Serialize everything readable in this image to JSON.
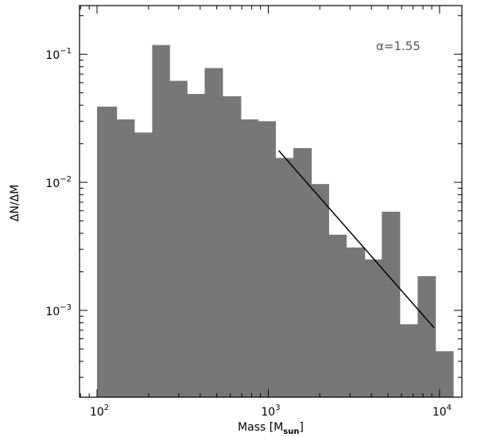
{
  "chart_data": {
    "type": "bar",
    "title": "",
    "xlabel": "Mass [M",
    "xlabel_sub": "sun",
    "xlabel_close": "]",
    "ylabel": "ΔN/ΔM",
    "xscale": "log",
    "yscale": "log",
    "xlim": [
      79,
      13500
    ],
    "ylim": [
      0.00021,
      0.24
    ],
    "bar_color": "#777777",
    "bins": [
      {
        "x0": 100,
        "x1": 130,
        "value": 0.039
      },
      {
        "x0": 130,
        "x1": 165,
        "value": 0.031
      },
      {
        "x0": 165,
        "x1": 210,
        "value": 0.0245
      },
      {
        "x0": 210,
        "x1": 265,
        "value": 0.118
      },
      {
        "x0": 265,
        "x1": 335,
        "value": 0.062
      },
      {
        "x0": 335,
        "x1": 425,
        "value": 0.049
      },
      {
        "x0": 425,
        "x1": 540,
        "value": 0.078
      },
      {
        "x0": 540,
        "x1": 690,
        "value": 0.047
      },
      {
        "x0": 690,
        "x1": 870,
        "value": 0.031
      },
      {
        "x0": 870,
        "x1": 1100,
        "value": 0.03
      },
      {
        "x0": 1100,
        "x1": 1400,
        "value": 0.0155
      },
      {
        "x0": 1400,
        "x1": 1780,
        "value": 0.0185
      },
      {
        "x0": 1780,
        "x1": 2250,
        "value": 0.0097
      },
      {
        "x0": 2250,
        "x1": 2850,
        "value": 0.0039
      },
      {
        "x0": 2850,
        "x1": 3650,
        "value": 0.0031
      },
      {
        "x0": 3650,
        "x1": 4600,
        "value": 0.0025
      },
      {
        "x0": 4600,
        "x1": 5850,
        "value": 0.0059
      },
      {
        "x0": 5850,
        "x1": 7450,
        "value": 0.00078
      },
      {
        "x0": 7450,
        "x1": 9450,
        "value": 0.00185
      },
      {
        "x0": 9450,
        "x1": 12000,
        "value": 0.00048
      }
    ],
    "fit_line": {
      "x": [
        1150,
        9300
      ],
      "y": [
        0.0177,
        0.00073
      ]
    },
    "annotation": "α=1.55",
    "x_ticks": [
      {
        "value": 100,
        "base": "10",
        "exp": "2"
      },
      {
        "value": 1000,
        "base": "10",
        "exp": "3"
      },
      {
        "value": 10000,
        "base": "10",
        "exp": "4"
      }
    ],
    "y_ticks": [
      {
        "value": 0.001,
        "base": "10",
        "exp": "−3"
      },
      {
        "value": 0.01,
        "base": "10",
        "exp": "−2"
      },
      {
        "value": 0.1,
        "base": "10",
        "exp": "−1"
      }
    ]
  }
}
